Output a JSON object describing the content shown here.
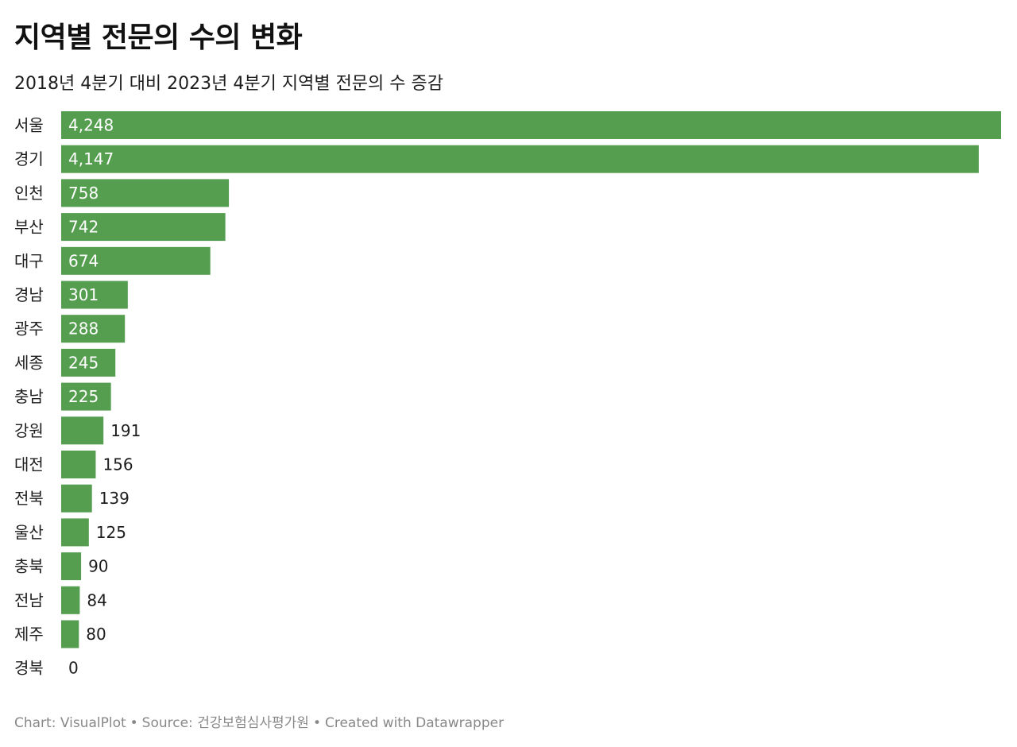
{
  "title": "지역별 전문의 수의 변화",
  "subtitle": "2018년 4분기 대비 2023년 4분기 지역별 전문의 수 증감",
  "footer": {
    "chart_credit": "Chart: VisualPlot",
    "source": "Source: 건강보험심사평가원",
    "created_with": "Created with Datawrapper",
    "separator": "•"
  },
  "colors": {
    "bar": "#559e50",
    "label_inside": "#ffffff",
    "label_outside": "#1d1d1d",
    "category_text": "#1d1d1d"
  },
  "chart_data": {
    "type": "bar",
    "orientation": "horizontal",
    "title": "지역별 전문의 수의 변화",
    "subtitle": "2018년 4분기 대비 2023년 4분기 지역별 전문의 수 증감",
    "categories": [
      "서울",
      "경기",
      "인천",
      "부산",
      "대구",
      "경남",
      "광주",
      "세종",
      "충남",
      "강원",
      "대전",
      "전북",
      "울산",
      "충북",
      "전남",
      "제주",
      "경북"
    ],
    "values": [
      4248,
      4147,
      758,
      742,
      674,
      301,
      288,
      245,
      225,
      191,
      156,
      139,
      125,
      90,
      84,
      80,
      0
    ],
    "value_labels": [
      "4,248",
      "4,147",
      "758",
      "742",
      "674",
      "301",
      "288",
      "245",
      "225",
      "191",
      "156",
      "139",
      "125",
      "90",
      "84",
      "80",
      "0"
    ],
    "xlim": [
      0,
      4248
    ],
    "grid": false,
    "legend": "none"
  }
}
